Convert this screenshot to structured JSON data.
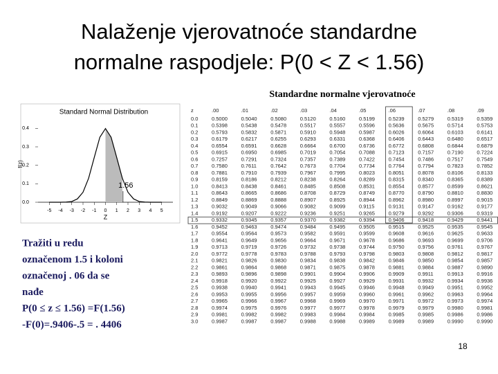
{
  "header": {
    "title_lines": [
      "Nalaženje vjerovatnoće standardne",
      "normalne raspodjele: P(0 < Z < 1.56)"
    ]
  },
  "chart_data": {
    "type": "line",
    "title": "Standard Normal Distribution",
    "x_label": "Z",
    "y_label": "f(z)",
    "annotation": "1.56",
    "shade_to": 1.56,
    "x": [
      -5,
      -4.5,
      -4,
      -3.5,
      -3,
      -2.5,
      -2,
      -1.5,
      -1,
      -0.5,
      0,
      0.5,
      1,
      1.5,
      2,
      2.5,
      3,
      3.5,
      4,
      4.5,
      5
    ],
    "series": [
      {
        "name": "f(z)",
        "color": "#000000",
        "values": [
          0,
          0,
          0,
          0.001,
          0.004,
          0.018,
          0.054,
          0.13,
          0.242,
          0.352,
          0.399,
          0.352,
          0.242,
          0.13,
          0.054,
          0.018,
          0.004,
          0.001,
          0,
          0,
          0
        ]
      }
    ],
    "xlim": [
      -6,
      6
    ],
    "ylim": [
      0,
      0.45
    ],
    "xticks": [
      -5,
      -4,
      -3,
      -2,
      -1,
      0,
      1,
      2,
      3,
      4,
      5
    ],
    "yticks": [
      {
        "value": 0,
        "label": "0.0"
      },
      0.1,
      0.2,
      0.3,
      0.4
    ]
  },
  "table": {
    "title": "Standardne normalne vjerovatnoće",
    "highlight_row": 15,
    "highlight_col": 7,
    "columns": [
      "z",
      ".00",
      ".01",
      ".02",
      ".03",
      ".04",
      ".05",
      ".06",
      ".07",
      ".08",
      ".09"
    ],
    "rows": [
      [
        "0.0",
        "0.5000",
        "0.5040",
        "0.5080",
        "0.5120",
        "0.5160",
        "0.5199",
        "0.5239",
        "0.5279",
        "0.5319",
        "0.5359"
      ],
      [
        "0.1",
        "0.5398",
        "0.5438",
        "0.5478",
        "0.5517",
        "0.5557",
        "0.5596",
        "0.5636",
        "0.5675",
        "0.5714",
        "0.5753"
      ],
      [
        "0.2",
        "0.5793",
        "0.5832",
        "0.5871",
        "0.5910",
        "0.5948",
        "0.5987",
        "0.6026",
        "0.6064",
        "0.6103",
        "0.6141"
      ],
      [
        "0.3",
        "0.6179",
        "0.6217",
        "0.6255",
        "0.6293",
        "0.6331",
        "0.6368",
        "0.6406",
        "0.6443",
        "0.6480",
        "0.6517"
      ],
      [
        "0.4",
        "0.6554",
        "0.6591",
        "0.6628",
        "0.6664",
        "0.6700",
        "0.6736",
        "0.6772",
        "0.6808",
        "0.6844",
        "0.6879"
      ],
      [
        "0.5",
        "0.6915",
        "0.6950",
        "0.6985",
        "0.7019",
        "0.7054",
        "0.7088",
        "0.7123",
        "0.7157",
        "0.7190",
        "0.7224"
      ],
      [
        "0.6",
        "0.7257",
        "0.7291",
        "0.7324",
        "0.7357",
        "0.7389",
        "0.7422",
        "0.7454",
        "0.7486",
        "0.7517",
        "0.7549"
      ],
      [
        "0.7",
        "0.7580",
        "0.7611",
        "0.7642",
        "0.7673",
        "0.7704",
        "0.7734",
        "0.7764",
        "0.7794",
        "0.7823",
        "0.7852"
      ],
      [
        "0.8",
        "0.7881",
        "0.7910",
        "0.7939",
        "0.7967",
        "0.7995",
        "0.8023",
        "0.8051",
        "0.8078",
        "0.8106",
        "0.8133"
      ],
      [
        "0.9",
        "0.8159",
        "0.8186",
        "0.8212",
        "0.8238",
        "0.8264",
        "0.8289",
        "0.8315",
        "0.8340",
        "0.8365",
        "0.8389"
      ],
      [
        "1.0",
        "0.8413",
        "0.8438",
        "0.8461",
        "0.8485",
        "0.8508",
        "0.8531",
        "0.8554",
        "0.8577",
        "0.8599",
        "0.8621"
      ],
      [
        "1.1",
        "0.8643",
        "0.8665",
        "0.8686",
        "0.8708",
        "0.8729",
        "0.8749",
        "0.8770",
        "0.8790",
        "0.8810",
        "0.8830"
      ],
      [
        "1.2",
        "0.8849",
        "0.8869",
        "0.8888",
        "0.8907",
        "0.8925",
        "0.8944",
        "0.8962",
        "0.8980",
        "0.8997",
        "0.9015"
      ],
      [
        "1.3",
        "0.9032",
        "0.9049",
        "0.9066",
        "0.9082",
        "0.9099",
        "0.9115",
        "0.9131",
        "0.9147",
        "0.9162",
        "0.9177"
      ],
      [
        "1.4",
        "0.9192",
        "0.9207",
        "0.9222",
        "0.9236",
        "0.9251",
        "0.9265",
        "0.9279",
        "0.9292",
        "0.9306",
        "0.9319"
      ],
      [
        "1.5",
        "0.9332",
        "0.9345",
        "0.9357",
        "0.9370",
        "0.9382",
        "0.9394",
        "0.9406",
        "0.9418",
        "0.9429",
        "0.9441"
      ],
      [
        "1.6",
        "0.9452",
        "0.9463",
        "0.9474",
        "0.9484",
        "0.9495",
        "0.9505",
        "0.9515",
        "0.9525",
        "0.9535",
        "0.9545"
      ],
      [
        "1.7",
        "0.9554",
        "0.9564",
        "0.9573",
        "0.9582",
        "0.9591",
        "0.9599",
        "0.9608",
        "0.9616",
        "0.9625",
        "0.9633"
      ],
      [
        "1.8",
        "0.9641",
        "0.9649",
        "0.9656",
        "0.9664",
        "0.9671",
        "0.9678",
        "0.9686",
        "0.9693",
        "0.9699",
        "0.9706"
      ],
      [
        "1.9",
        "0.9713",
        "0.9719",
        "0.9726",
        "0.9732",
        "0.9738",
        "0.9744",
        "0.9750",
        "0.9756",
        "0.9761",
        "0.9767"
      ],
      [
        "2.0",
        "0.9772",
        "0.9778",
        "0.9783",
        "0.9788",
        "0.9793",
        "0.9798",
        "0.9803",
        "0.9808",
        "0.9812",
        "0.9817"
      ],
      [
        "2.1",
        "0.9821",
        "0.9826",
        "0.9830",
        "0.9834",
        "0.9838",
        "0.9842",
        "0.9846",
        "0.9850",
        "0.9854",
        "0.9857"
      ],
      [
        "2.2",
        "0.9861",
        "0.9864",
        "0.9868",
        "0.9871",
        "0.9875",
        "0.9878",
        "0.9881",
        "0.9884",
        "0.9887",
        "0.9890"
      ],
      [
        "2.3",
        "0.9893",
        "0.9896",
        "0.9898",
        "0.9901",
        "0.9904",
        "0.9906",
        "0.9909",
        "0.9911",
        "0.9913",
        "0.9916"
      ],
      [
        "2.4",
        "0.9918",
        "0.9920",
        "0.9922",
        "0.9925",
        "0.9927",
        "0.9929",
        "0.9931",
        "0.9932",
        "0.9934",
        "0.9936"
      ],
      [
        "2.5",
        "0.9938",
        "0.9940",
        "0.9941",
        "0.9943",
        "0.9945",
        "0.9946",
        "0.9948",
        "0.9949",
        "0.9951",
        "0.9952"
      ],
      [
        "2.6",
        "0.9953",
        "0.9955",
        "0.9956",
        "0.9957",
        "0.9959",
        "0.9960",
        "0.9961",
        "0.9962",
        "0.9963",
        "0.9964"
      ],
      [
        "2.7",
        "0.9965",
        "0.9966",
        "0.9967",
        "0.9968",
        "0.9969",
        "0.9970",
        "0.9971",
        "0.9972",
        "0.9973",
        "0.9974"
      ],
      [
        "2.8",
        "0.9974",
        "0.9975",
        "0.9976",
        "0.9977",
        "0.9977",
        "0.9978",
        "0.9979",
        "0.9979",
        "0.9980",
        "0.9981"
      ],
      [
        "2.9",
        "0.9981",
        "0.9982",
        "0.9982",
        "0.9983",
        "0.9984",
        "0.9984",
        "0.9985",
        "0.9985",
        "0.9986",
        "0.9986"
      ],
      [
        "3.0",
        "0.9987",
        "0.9987",
        "0.9987",
        "0.9988",
        "0.9988",
        "0.9989",
        "0.9989",
        "0.9989",
        "0.9990",
        "0.9990"
      ]
    ]
  },
  "note": {
    "lines": [
      "Tražiti u redu",
      "označenom 1.5 i koloni",
      "označenoj . 06 da se",
      "nađe",
      "P(0 ≤ z ≤ 1.56) =F(1.56)",
      "-F(0)=.9406-.5 = . 4406"
    ]
  },
  "footer": {
    "page": "18"
  }
}
